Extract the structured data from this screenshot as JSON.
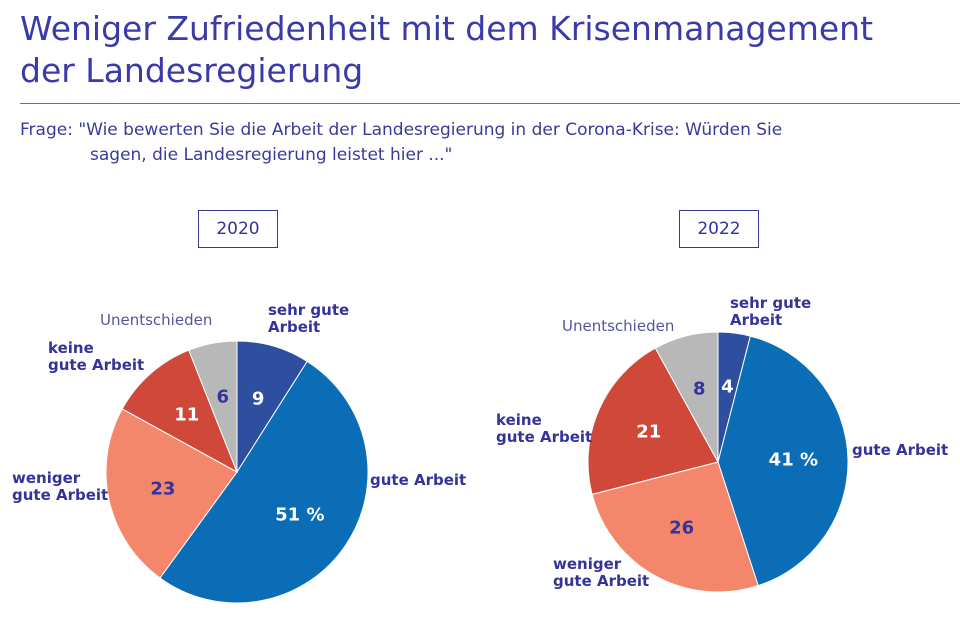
{
  "title": "Weniger Zufriedenheit mit dem Krisenmanagement\nder Landesregierung",
  "subtitle": "Frage: \"Wie bewerten Sie die Arbeit der Landesregierung in der Corona-Krise: Würden Sie\nsagen, die Landesregierung leistet hier ...\"",
  "chart_data": [
    {
      "type": "pie",
      "title": "2020",
      "categories": [
        "sehr gute\nArbeit",
        "gute Arbeit",
        "weniger\ngute Arbeit",
        "keine\ngute Arbeit",
        "Unentschieden"
      ],
      "values": [
        9,
        51,
        23,
        11,
        6
      ],
      "value_labels": [
        "9",
        "51 %",
        "23",
        "11",
        "6"
      ],
      "colors": [
        "#2e4fa0",
        "#0a6db5",
        "#f4876b",
        "#d0483a",
        "#b8b8b8"
      ]
    },
    {
      "type": "pie",
      "title": "2022",
      "categories": [
        "sehr gute\nArbeit",
        "gute Arbeit",
        "weniger\ngute Arbeit",
        "keine\ngute Arbeit",
        "Unentschieden"
      ],
      "values": [
        4,
        41,
        26,
        21,
        8
      ],
      "value_labels": [
        "4",
        "41 %",
        "26",
        "21",
        "8"
      ],
      "colors": [
        "#2e4fa0",
        "#0a6db5",
        "#f4876b",
        "#d0483a",
        "#b8b8b8"
      ]
    }
  ]
}
